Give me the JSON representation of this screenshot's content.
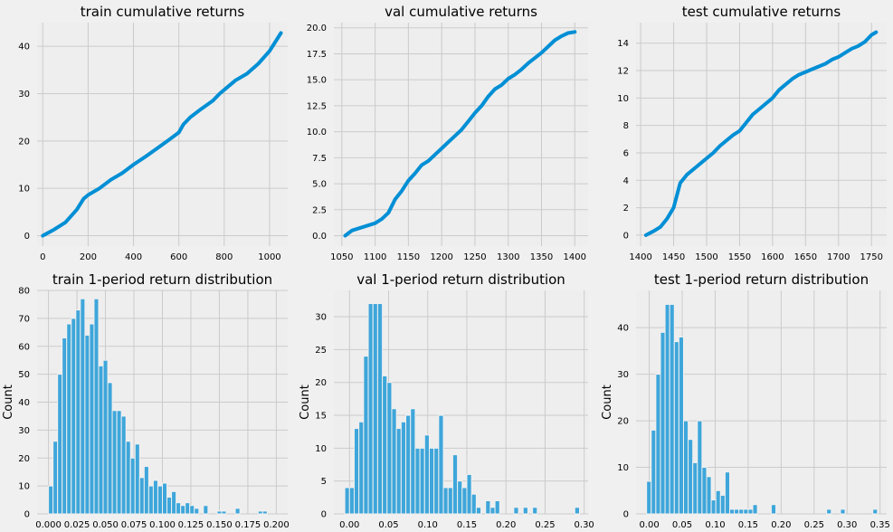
{
  "colors": {
    "figure_bg": "#f0f0f0",
    "axes_bg": "#eeeeee",
    "grid": "#cbcbcb",
    "line": "#008fd5",
    "bar_fill": "#3ea6da",
    "bar_edge": "#f0f0f0",
    "text": "#000000"
  },
  "chart_data": [
    {
      "type": "line",
      "title": "train cumulative returns",
      "xlabel": "",
      "ylabel": "",
      "xlim": [
        -25,
        1080
      ],
      "ylim": [
        -2.2,
        45
      ],
      "xticks": [
        0,
        200,
        400,
        600,
        800,
        1000
      ],
      "yticks": [
        0,
        10,
        20,
        30,
        40
      ],
      "x": [
        0,
        50,
        100,
        150,
        180,
        200,
        250,
        300,
        350,
        400,
        450,
        500,
        550,
        600,
        620,
        650,
        700,
        750,
        780,
        800,
        850,
        900,
        950,
        1000,
        1050
      ],
      "y": [
        0,
        1.3,
        2.8,
        5.5,
        7.8,
        8.6,
        10.0,
        11.8,
        13.2,
        15.0,
        16.6,
        18.3,
        20.0,
        21.8,
        23.5,
        25.0,
        26.8,
        28.5,
        30.0,
        30.8,
        32.8,
        34.2,
        36.3,
        39.0,
        42.8
      ]
    },
    {
      "type": "line",
      "title": "val cumulative returns",
      "xlabel": "",
      "ylabel": "",
      "xlim": [
        1038,
        1420
      ],
      "ylim": [
        -1.0,
        20.5
      ],
      "xticks": [
        1050,
        1100,
        1150,
        1200,
        1250,
        1300,
        1350,
        1400
      ],
      "xtick_labels": [
        "1050",
        "1100",
        "1150",
        "1200",
        "1250",
        "1300",
        "1350",
        "1400"
      ],
      "yticks": [
        0.0,
        2.5,
        5.0,
        7.5,
        10.0,
        12.5,
        15.0,
        17.5,
        20.0
      ],
      "ytick_labels": [
        "0.0",
        "2.5",
        "5.0",
        "7.5",
        "10.0",
        "12.5",
        "15.0",
        "17.5",
        "20.0"
      ],
      "x": [
        1055,
        1065,
        1080,
        1100,
        1110,
        1120,
        1130,
        1140,
        1150,
        1160,
        1170,
        1180,
        1190,
        1200,
        1210,
        1220,
        1230,
        1240,
        1250,
        1260,
        1270,
        1280,
        1290,
        1300,
        1310,
        1320,
        1330,
        1340,
        1350,
        1360,
        1370,
        1380,
        1390,
        1400
      ],
      "y": [
        0,
        0.5,
        0.8,
        1.2,
        1.6,
        2.2,
        3.5,
        4.3,
        5.3,
        6.0,
        6.8,
        7.2,
        7.8,
        8.4,
        9.0,
        9.6,
        10.2,
        11.0,
        11.8,
        12.5,
        13.4,
        14.1,
        14.5,
        15.1,
        15.5,
        16.0,
        16.6,
        17.1,
        17.6,
        18.2,
        18.8,
        19.2,
        19.5,
        19.6
      ]
    },
    {
      "type": "line",
      "title": "test cumulative returns",
      "xlabel": "",
      "ylabel": "",
      "xlim": [
        1393,
        1773
      ],
      "ylim": [
        -0.8,
        15.5
      ],
      "xticks": [
        1400,
        1450,
        1500,
        1550,
        1600,
        1650,
        1700,
        1750
      ],
      "yticks": [
        0,
        2,
        4,
        6,
        8,
        10,
        12,
        14
      ],
      "x": [
        1408,
        1420,
        1430,
        1440,
        1450,
        1460,
        1470,
        1480,
        1490,
        1500,
        1510,
        1520,
        1530,
        1540,
        1550,
        1560,
        1570,
        1580,
        1590,
        1600,
        1610,
        1620,
        1630,
        1640,
        1650,
        1660,
        1670,
        1680,
        1690,
        1700,
        1710,
        1720,
        1730,
        1740,
        1750,
        1757
      ],
      "y": [
        0,
        0.3,
        0.6,
        1.2,
        2.0,
        3.8,
        4.4,
        4.8,
        5.2,
        5.6,
        6.0,
        6.5,
        6.9,
        7.3,
        7.6,
        8.2,
        8.8,
        9.2,
        9.6,
        10.0,
        10.6,
        11.0,
        11.4,
        11.7,
        11.9,
        12.1,
        12.3,
        12.5,
        12.8,
        13.0,
        13.3,
        13.6,
        13.8,
        14.1,
        14.6,
        14.8
      ]
    },
    {
      "type": "histogram",
      "title": "train 1-period return distribution",
      "xlabel": "",
      "ylabel": "Count",
      "bin_start": 0.0,
      "bin_width": 0.004,
      "xlim": [
        -0.01,
        0.21
      ],
      "ylim": [
        0,
        80
      ],
      "xticks": [
        0.0,
        0.025,
        0.05,
        0.075,
        0.1,
        0.125,
        0.15,
        0.175,
        0.2
      ],
      "xtick_labels": [
        "0.000",
        "0.025",
        "0.050",
        "0.075",
        "0.100",
        "0.125",
        "0.150",
        "0.175",
        "0.200"
      ],
      "yticks": [
        0,
        10,
        20,
        30,
        40,
        50,
        60,
        70,
        80
      ],
      "values": [
        10,
        26,
        50,
        63,
        68,
        70,
        73,
        77,
        64,
        68,
        77,
        53,
        55,
        47,
        37,
        37,
        35,
        26,
        20,
        25,
        13,
        17,
        10,
        12,
        10,
        11,
        6,
        8,
        4,
        3,
        4,
        3,
        2,
        0,
        3,
        0,
        0,
        1,
        1,
        0,
        0,
        2,
        0,
        0,
        0,
        0,
        1,
        1,
        0,
        0
      ]
    },
    {
      "type": "histogram",
      "title": "val 1-period return distribution",
      "xlabel": "",
      "ylabel": "Count",
      "bin_start": -0.006,
      "bin_width": 0.006,
      "xlim": [
        -0.02,
        0.305
      ],
      "ylim": [
        0,
        34
      ],
      "xticks": [
        0.0,
        0.05,
        0.1,
        0.15,
        0.2,
        0.25,
        0.3
      ],
      "xtick_labels": [
        "0.00",
        "0.05",
        "0.10",
        "0.15",
        "0.20",
        "0.25",
        "0.30"
      ],
      "yticks": [
        0,
        5,
        10,
        15,
        20,
        25,
        30
      ],
      "values": [
        4,
        4,
        13,
        14,
        24,
        32,
        32,
        32,
        21,
        20,
        16,
        13,
        14,
        15,
        16,
        10,
        10,
        12,
        10,
        10,
        15,
        4,
        4,
        9,
        5,
        4,
        6,
        3,
        1,
        0,
        2,
        1,
        2,
        0,
        0,
        0,
        1,
        0,
        1,
        0,
        1,
        0,
        0,
        0,
        0,
        0,
        0,
        0,
        0,
        1
      ]
    },
    {
      "type": "histogram",
      "title": "test 1-period return distribution",
      "xlabel": "",
      "ylabel": "Count",
      "bin_start": -0.004,
      "bin_width": 0.007,
      "xlim": [
        -0.02,
        0.36
      ],
      "ylim": [
        0,
        48
      ],
      "xticks": [
        0.0,
        0.05,
        0.1,
        0.15,
        0.2,
        0.25,
        0.3,
        0.35
      ],
      "xtick_labels": [
        "0.00",
        "0.05",
        "0.10",
        "0.15",
        "0.20",
        "0.25",
        "0.30",
        "0.35"
      ],
      "yticks": [
        0,
        10,
        20,
        30,
        40
      ],
      "values": [
        7,
        18,
        30,
        39,
        45,
        45,
        37,
        38,
        20,
        16,
        11,
        20,
        10,
        8,
        3,
        5,
        4,
        9,
        1,
        1,
        1,
        1,
        1,
        2,
        0,
        0,
        0,
        2,
        0,
        0,
        0,
        0,
        0,
        0,
        0,
        0,
        0,
        0,
        0,
        1,
        0,
        0,
        1,
        0,
        0,
        0,
        0,
        0,
        0,
        1
      ]
    }
  ]
}
